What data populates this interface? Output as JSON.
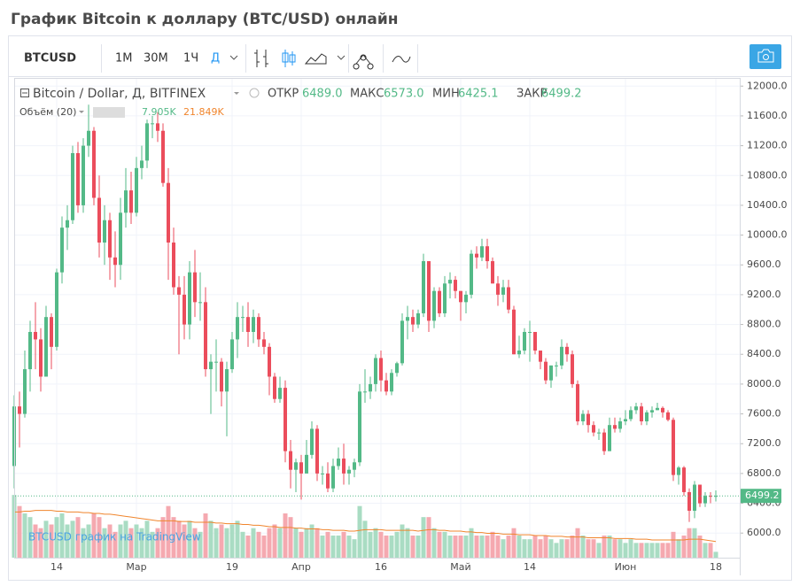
{
  "page_title": "График Bitcoin к доллару (BTC/USD) онлайн",
  "toolbar": {
    "symbol": "BTCUSD",
    "intervals": [
      "1М",
      "30М",
      "1Ч",
      "Д"
    ]
  },
  "legend": {
    "series_name": "Bitcoin / Dollar, Д, BITFINEX",
    "open_label": "ОТКР",
    "open": "6489.0",
    "high_label": "МАКС",
    "high": "6573.0",
    "low_label": "МИН",
    "low": "6425.1",
    "close_label": "ЗАКР",
    "close": "6499.2",
    "volume_name": "Объём (20)",
    "volume": "7.905K",
    "volume_ma": "21.849K"
  },
  "watermark": "BTCUSD график на TradingView",
  "chart_data": {
    "type": "candlestick",
    "up_color": "#53b987",
    "down_color": "#eb4d5c",
    "volume_up_color": "#a9dcc3",
    "volume_down_color": "#f5a9b0",
    "volume_ma_color": "#f0852d",
    "grid": true,
    "categories": [
      null,
      null,
      null,
      null,
      null,
      null,
      null,
      null,
      "14",
      null,
      null,
      null,
      null,
      null,
      null,
      null,
      null,
      null,
      null,
      null,
      null,
      null,
      null,
      "Мар",
      null,
      null,
      null,
      null,
      null,
      null,
      null,
      null,
      null,
      null,
      null,
      null,
      null,
      null,
      null,
      null,
      null,
      "19",
      null,
      null,
      null,
      null,
      null,
      null,
      null,
      null,
      null,
      null,
      null,
      null,
      "Апр",
      null,
      null,
      null,
      null,
      null,
      null,
      null,
      null,
      null,
      null,
      null,
      null,
      null,
      null,
      "16",
      null,
      null,
      null,
      null,
      null,
      null,
      null,
      null,
      null,
      null,
      null,
      null,
      null,
      null,
      "Май",
      null,
      null,
      null,
      null,
      null,
      null,
      null,
      null,
      null,
      null,
      null,
      null,
      "14",
      null,
      null,
      null,
      null,
      null,
      null,
      null,
      null,
      null,
      null,
      null,
      null,
      null,
      null,
      null,
      null,
      null,
      "Июн",
      null,
      null,
      null,
      null,
      null,
      null,
      null,
      null,
      null,
      null,
      null,
      null,
      null,
      null,
      null,
      null,
      "18"
    ],
    "open": [
      6900,
      7700,
      7600,
      8200,
      8700,
      8600,
      8100,
      8900,
      8500,
      9500,
      10100,
      10200,
      11100,
      10400,
      11200,
      11400,
      10500,
      9900,
      10200,
      9700,
      9600,
      10300,
      10600,
      10300,
      10900,
      11000,
      11500,
      11500,
      11400,
      10700,
      9900,
      9300,
      9200,
      8800,
      9500,
      9100,
      9100,
      8200,
      8300,
      8300,
      7900,
      8200,
      8600,
      8900,
      8900,
      8700,
      8900,
      8600,
      8500,
      8100,
      7800,
      7950,
      7100,
      6850,
      6950,
      6800,
      7050,
      7400,
      6800,
      6800,
      6600,
      6900,
      7000,
      6800,
      6850,
      6950,
      7900,
      7900,
      8000,
      8350,
      8050,
      7900,
      8150,
      8280,
      8850,
      8900,
      8800,
      8950,
      9650,
      8850,
      9250,
      8950,
      9350,
      9400,
      9250,
      9100,
      9200,
      9750,
      9700,
      9850,
      9650,
      9350,
      9200,
      9300,
      9000,
      8400,
      8450,
      8700,
      8700,
      8450,
      8300,
      8050,
      8250,
      8250,
      8500,
      8400,
      8000,
      7500,
      7600,
      7450,
      7350,
      7350,
      7100,
      7450,
      7400,
      7500,
      7530,
      7650,
      7700,
      7500,
      7620,
      7650,
      7680,
      7620,
      7520,
      6780,
      6880,
      6550,
      6300,
      6650,
      6400,
      6500,
      6489
    ],
    "high": [
      7850,
      7900,
      8450,
      8850,
      9100,
      8750,
      9050,
      8950,
      9550,
      10250,
      10400,
      11200,
      11250,
      11300,
      11750,
      11450,
      10800,
      10400,
      10300,
      10050,
      10500,
      10900,
      10850,
      11050,
      11200,
      11550,
      11600,
      11650,
      11500,
      10900,
      10100,
      9450,
      9450,
      9650,
      9800,
      9500,
      9300,
      8400,
      8600,
      8350,
      8300,
      8700,
      9100,
      9050,
      9100,
      9000,
      8950,
      8700,
      8550,
      8150,
      8100,
      8050,
      7250,
      7000,
      7050,
      7250,
      7500,
      7450,
      6900,
      6950,
      7000,
      7150,
      7200,
      6900,
      7000,
      8000,
      8200,
      8100,
      8400,
      8450,
      8150,
      8200,
      8300,
      8950,
      9050,
      9000,
      9000,
      9750,
      9650,
      9300,
      9300,
      9450,
      9500,
      9450,
      9250,
      9250,
      9800,
      9850,
      9950,
      9950,
      9700,
      9450,
      9400,
      9400,
      9050,
      8650,
      8750,
      8850,
      8700,
      8450,
      8350,
      8250,
      8300,
      8600,
      8550,
      8450,
      8050,
      7650,
      7650,
      7500,
      7400,
      7400,
      7550,
      7550,
      7550,
      7650,
      7700,
      7750,
      7750,
      7650,
      7700,
      7750,
      7700,
      7650,
      7550,
      6900,
      6900,
      6600,
      6700,
      6650,
      6550,
      6550,
      6573
    ],
    "low": [
      6600,
      7150,
      7550,
      7900,
      8200,
      7900,
      8100,
      8200,
      8450,
      9350,
      9800,
      10150,
      10300,
      10300,
      11050,
      10400,
      9700,
      9600,
      9400,
      9300,
      9400,
      10100,
      10150,
      10250,
      10750,
      10900,
      11300,
      11250,
      10650,
      9400,
      9200,
      8400,
      8600,
      8600,
      8900,
      8850,
      8100,
      7600,
      7900,
      7700,
      7300,
      8150,
      8350,
      8700,
      8500,
      8550,
      8500,
      8400,
      7850,
      7750,
      7750,
      6950,
      6600,
      6550,
      6450,
      6800,
      7000,
      6700,
      6650,
      6550,
      6550,
      6850,
      6650,
      6650,
      6750,
      6900,
      7750,
      7800,
      7900,
      7900,
      7850,
      7850,
      8100,
      8250,
      8600,
      8700,
      8750,
      8900,
      8700,
      8750,
      8900,
      8900,
      9150,
      9150,
      8850,
      8950,
      9150,
      9550,
      9650,
      9550,
      9350,
      9050,
      9100,
      8950,
      8400,
      8350,
      8400,
      8300,
      8400,
      8200,
      8000,
      7950,
      8100,
      8200,
      8300,
      7950,
      7450,
      7450,
      7350,
      7300,
      7250,
      7050,
      7100,
      7350,
      7350,
      7450,
      7500,
      7600,
      7450,
      7450,
      7550,
      7650,
      7550,
      7500,
      6700,
      6650,
      6500,
      6150,
      6200,
      6350,
      6350,
      6400,
      6425.1
    ],
    "close": [
      7700,
      7600,
      8200,
      8700,
      8600,
      8100,
      8900,
      8500,
      9500,
      10100,
      10200,
      11100,
      10400,
      11200,
      11400,
      10500,
      9900,
      10200,
      9700,
      9600,
      10300,
      10600,
      10300,
      10900,
      11000,
      11500,
      11500,
      11400,
      10700,
      9900,
      9300,
      9200,
      8800,
      9500,
      9100,
      9100,
      8200,
      8300,
      8300,
      7900,
      8200,
      8600,
      8900,
      8900,
      8700,
      8900,
      8600,
      8500,
      8100,
      7800,
      7950,
      7100,
      6850,
      6950,
      6800,
      7050,
      7400,
      6800,
      6800,
      6600,
      6900,
      7000,
      6800,
      6850,
      6950,
      7900,
      7900,
      8000,
      8350,
      8050,
      7900,
      8150,
      8280,
      8850,
      8900,
      8800,
      8950,
      9650,
      8850,
      9250,
      8950,
      9350,
      9400,
      9250,
      9100,
      9200,
      9750,
      9700,
      9850,
      9650,
      9350,
      9200,
      9300,
      9000,
      8400,
      8450,
      8700,
      8700,
      8450,
      8300,
      8050,
      8250,
      8250,
      8500,
      8400,
      8000,
      7500,
      7600,
      7450,
      7350,
      7350,
      7100,
      7450,
      7400,
      7500,
      7530,
      7650,
      7700,
      7500,
      7620,
      7650,
      7680,
      7620,
      7520,
      6780,
      6880,
      6550,
      6300,
      6650,
      6400,
      6500,
      6489,
      6499.2
    ],
    "volume": [
      85,
      70,
      60,
      55,
      45,
      40,
      50,
      45,
      55,
      60,
      45,
      50,
      55,
      40,
      45,
      60,
      55,
      40,
      45,
      35,
      45,
      50,
      40,
      45,
      40,
      50,
      35,
      40,
      55,
      70,
      55,
      50,
      45,
      50,
      40,
      35,
      60,
      50,
      40,
      45,
      40,
      45,
      50,
      35,
      30,
      40,
      35,
      30,
      40,
      45,
      40,
      60,
      55,
      40,
      35,
      40,
      45,
      40,
      30,
      35,
      30,
      30,
      35,
      30,
      25,
      70,
      50,
      35,
      40,
      35,
      30,
      30,
      35,
      45,
      40,
      30,
      30,
      55,
      55,
      40,
      35,
      35,
      30,
      30,
      30,
      30,
      40,
      30,
      30,
      30,
      35,
      30,
      25,
      30,
      40,
      30,
      25,
      25,
      30,
      25,
      30,
      25,
      20,
      25,
      25,
      30,
      40,
      30,
      25,
      25,
      20,
      30,
      30,
      25,
      25,
      20,
      25,
      20,
      20,
      20,
      20,
      20,
      20,
      20,
      35,
      25,
      30,
      40,
      40,
      30,
      20,
      20,
      7.905
    ],
    "volume_ma": [
      62,
      62,
      63,
      63,
      64,
      64,
      64,
      64,
      63,
      63,
      62,
      62,
      62,
      61,
      61,
      60,
      60,
      59,
      59,
      58,
      57,
      56,
      55,
      54,
      53,
      52,
      51,
      50,
      50,
      50,
      50,
      49,
      49,
      49,
      48,
      48,
      48,
      48,
      47,
      47,
      46,
      46,
      46,
      45,
      45,
      44,
      44,
      43,
      42,
      42,
      41,
      41,
      41,
      40,
      40,
      39,
      39,
      39,
      38,
      38,
      37,
      37,
      37,
      36,
      36,
      37,
      38,
      38,
      38,
      38,
      37,
      37,
      37,
      37,
      37,
      37,
      36,
      37,
      38,
      38,
      37,
      37,
      36,
      36,
      36,
      35,
      35,
      34,
      34,
      33,
      33,
      33,
      32,
      32,
      32,
      31,
      31,
      31,
      30,
      30,
      30,
      29,
      29,
      29,
      28,
      28,
      28,
      28,
      27,
      27,
      27,
      27,
      27,
      26,
      26,
      26,
      26,
      25,
      25,
      25,
      24,
      24,
      24,
      24,
      24,
      24,
      24,
      25,
      25,
      25,
      24,
      23,
      21.849
    ],
    "volume_ylim": [
      0,
      120
    ],
    "ylim": [
      5670,
      12110
    ],
    "yticks": [
      {
        "value": 6000,
        "label": "6000.0"
      },
      {
        "value": 6400,
        "label": "6400.0"
      },
      {
        "value": 6800,
        "label": "6800.0"
      },
      {
        "value": 7200,
        "label": "7200.0"
      },
      {
        "value": 7600,
        "label": "7600.0"
      },
      {
        "value": 8000,
        "label": "8000.0"
      },
      {
        "value": 8400,
        "label": "8400.0"
      },
      {
        "value": 8800,
        "label": "8800.0"
      },
      {
        "value": 9200,
        "label": "9200.0"
      },
      {
        "value": 9600,
        "label": "9600.0"
      },
      {
        "value": 10000,
        "label": "10000.0"
      },
      {
        "value": 10400,
        "label": "10400.0"
      },
      {
        "value": 10800,
        "label": "10800.0"
      },
      {
        "value": 11200,
        "label": "11200.0"
      },
      {
        "value": 11600,
        "label": "11600.0"
      },
      {
        "value": 12000,
        "label": "12000.0"
      }
    ]
  }
}
